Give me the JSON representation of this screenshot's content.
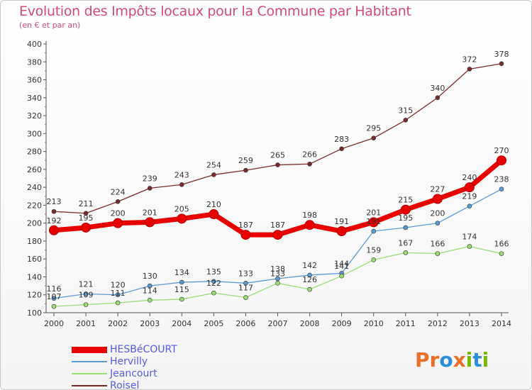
{
  "header": {
    "title": "Evolution des Impôts locaux pour la Commune par Habitant",
    "subtitle": "(en € et par an)"
  },
  "logo": {
    "letters": [
      "P",
      "r",
      "o",
      "x",
      "i",
      "t",
      "i"
    ],
    "colors": [
      "#e8702a",
      "#e8702a",
      "#2a8fd6",
      "#e8702a",
      "#7ab800",
      "#2a8fd6",
      "#7ab800"
    ]
  },
  "chart_data": {
    "type": "line",
    "title": "Evolution des Impôts locaux pour la Commune par Habitant",
    "subtitle": "(en € et par an)",
    "x": [
      2000,
      2001,
      2002,
      2003,
      2004,
      2005,
      2006,
      2007,
      2008,
      2009,
      2010,
      2011,
      2012,
      2013,
      2014
    ],
    "ylim": [
      100,
      400
    ],
    "ytick_step": 20,
    "grid": false,
    "legend_position": "bottom-left",
    "series": [
      {
        "name": "HESBéCOURT",
        "color": "#e80000",
        "emphasis": true,
        "values": [
          192,
          195,
          200,
          201,
          205,
          210,
          187,
          187,
          198,
          191,
          201,
          215,
          227,
          240,
          270
        ]
      },
      {
        "name": "Hervilly",
        "color": "#5b9bd5",
        "values": [
          116,
          121,
          120,
          130,
          134,
          135,
          133,
          138,
          142,
          144,
          191,
          195,
          200,
          219,
          238
        ]
      },
      {
        "name": "Jeancourt",
        "color": "#99dd77",
        "values": [
          107,
          109,
          111,
          114,
          115,
          122,
          117,
          133,
          126,
          141,
          159,
          167,
          166,
          174,
          166
        ]
      },
      {
        "name": "Roisel",
        "color": "#7a2a2a",
        "values": [
          213,
          211,
          224,
          239,
          243,
          254,
          259,
          265,
          266,
          283,
          295,
          315,
          340,
          372,
          378
        ]
      }
    ]
  }
}
